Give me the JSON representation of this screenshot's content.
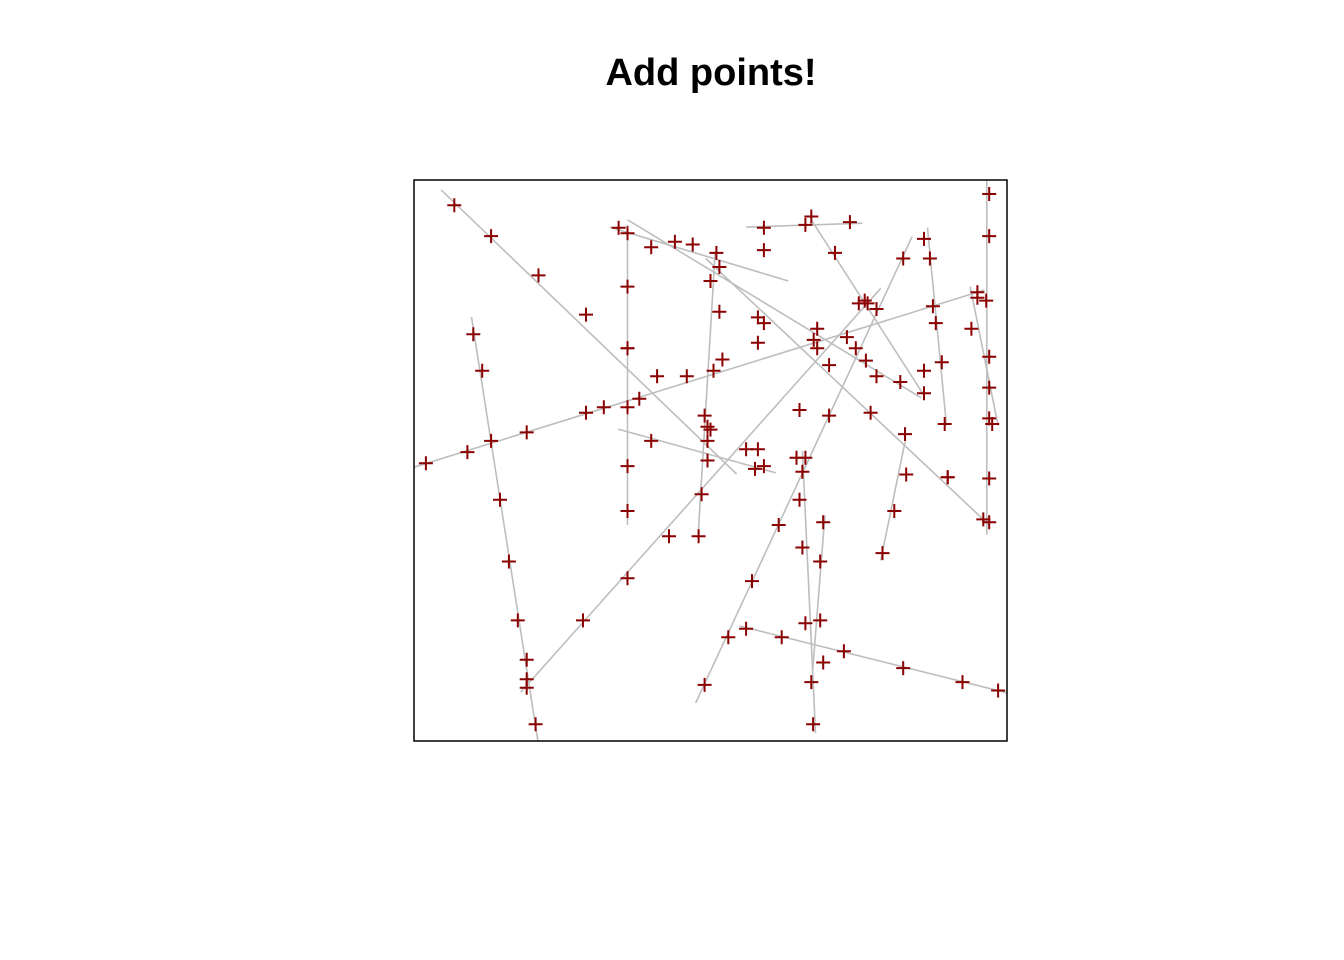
{
  "chart_data": {
    "type": "scatter",
    "title": "Add points!",
    "xlabel": "",
    "ylabel": "",
    "xlim": [
      0,
      1
    ],
    "ylim": [
      0,
      1
    ],
    "axes_shown": false,
    "box": true,
    "grid": false,
    "line_color": "#bebebe",
    "point_color": "#8b0000",
    "point_marker": "plus",
    "lines": [
      {
        "from": [
          0.046,
          0.982
        ],
        "to": [
          0.544,
          0.476
        ]
      },
      {
        "from": [
          0.0,
          0.488
        ],
        "to": [
          0.962,
          0.804
        ]
      },
      {
        "from": [
          0.097,
          0.756
        ],
        "to": [
          0.209,
          0.0
        ]
      },
      {
        "from": [
          0.36,
          0.92
        ],
        "to": [
          0.36,
          0.385
        ]
      },
      {
        "from": [
          0.33,
          0.916
        ],
        "to": [
          0.631,
          0.82
        ]
      },
      {
        "from": [
          0.56,
          0.916
        ],
        "to": [
          0.756,
          0.923
        ]
      },
      {
        "from": [
          0.67,
          0.929
        ],
        "to": [
          0.86,
          0.616
        ]
      },
      {
        "from": [
          0.36,
          0.929
        ],
        "to": [
          0.855,
          0.612
        ]
      },
      {
        "from": [
          0.492,
          0.86
        ],
        "to": [
          0.97,
          0.385
        ]
      },
      {
        "from": [
          0.18,
          0.087
        ],
        "to": [
          0.787,
          0.807
        ]
      },
      {
        "from": [
          0.475,
          0.068
        ],
        "to": [
          0.84,
          0.899
        ]
      },
      {
        "from": [
          0.508,
          0.872
        ],
        "to": [
          0.479,
          0.362
        ]
      },
      {
        "from": [
          0.344,
          0.556
        ],
        "to": [
          0.61,
          0.478
        ]
      },
      {
        "from": [
          0.655,
          0.517
        ],
        "to": [
          0.677,
          0.014
        ]
      },
      {
        "from": [
          0.693,
          0.402
        ],
        "to": [
          0.672,
          0.122
        ]
      },
      {
        "from": [
          0.549,
          0.205
        ],
        "to": [
          1.0,
          0.086
        ]
      },
      {
        "from": [
          0.866,
          0.915
        ],
        "to": [
          0.898,
          0.562
        ]
      },
      {
        "from": [
          0.966,
          1.0
        ],
        "to": [
          0.966,
          0.368
        ]
      },
      {
        "from": [
          0.938,
          0.81
        ],
        "to": [
          0.985,
          0.562
        ]
      },
      {
        "from": [
          0.828,
          0.533
        ],
        "to": [
          0.787,
          0.322
        ]
      }
    ],
    "points": [
      [
        0.068,
        0.955
      ],
      [
        0.13,
        0.9
      ],
      [
        0.21,
        0.83
      ],
      [
        0.29,
        0.76
      ],
      [
        0.36,
        0.7
      ],
      [
        0.41,
        0.65
      ],
      [
        0.49,
        0.58
      ],
      [
        0.56,
        0.52
      ],
      [
        0.02,
        0.495
      ],
      [
        0.09,
        0.515
      ],
      [
        0.19,
        0.55
      ],
      [
        0.29,
        0.585
      ],
      [
        0.38,
        0.61
      ],
      [
        0.46,
        0.65
      ],
      [
        0.52,
        0.68
      ],
      [
        0.58,
        0.71
      ],
      [
        0.68,
        0.735
      ],
      [
        0.75,
        0.78
      ],
      [
        0.95,
        0.8
      ],
      [
        0.1,
        0.725
      ],
      [
        0.115,
        0.66
      ],
      [
        0.13,
        0.535
      ],
      [
        0.145,
        0.43
      ],
      [
        0.16,
        0.32
      ],
      [
        0.175,
        0.215
      ],
      [
        0.19,
        0.11
      ],
      [
        0.205,
        0.03
      ],
      [
        0.36,
        0.905
      ],
      [
        0.36,
        0.81
      ],
      [
        0.36,
        0.7
      ],
      [
        0.36,
        0.595
      ],
      [
        0.36,
        0.49
      ],
      [
        0.36,
        0.41
      ],
      [
        0.345,
        0.915
      ],
      [
        0.4,
        0.88
      ],
      [
        0.44,
        0.89
      ],
      [
        0.47,
        0.885
      ],
      [
        0.51,
        0.87
      ],
      [
        0.59,
        0.875
      ],
      [
        0.59,
        0.915
      ],
      [
        0.66,
        0.92
      ],
      [
        0.67,
        0.935
      ],
      [
        0.735,
        0.925
      ],
      [
        0.71,
        0.87
      ],
      [
        0.765,
        0.78
      ],
      [
        0.82,
        0.64
      ],
      [
        0.86,
        0.62
      ],
      [
        0.5,
        0.82
      ],
      [
        0.58,
        0.755
      ],
      [
        0.59,
        0.745
      ],
      [
        0.674,
        0.715
      ],
      [
        0.762,
        0.678
      ],
      [
        0.828,
        0.547
      ],
      [
        0.9,
        0.47
      ],
      [
        0.96,
        0.395
      ],
      [
        0.19,
        0.145
      ],
      [
        0.19,
        0.095
      ],
      [
        0.285,
        0.215
      ],
      [
        0.36,
        0.29
      ],
      [
        0.43,
        0.365
      ],
      [
        0.575,
        0.485
      ],
      [
        0.65,
        0.59
      ],
      [
        0.7,
        0.67
      ],
      [
        0.68,
        0.7
      ],
      [
        0.49,
        0.1
      ],
      [
        0.53,
        0.185
      ],
      [
        0.57,
        0.285
      ],
      [
        0.615,
        0.385
      ],
      [
        0.66,
        0.505
      ],
      [
        0.7,
        0.58
      ],
      [
        0.76,
        0.785
      ],
      [
        0.78,
        0.77
      ],
      [
        0.825,
        0.86
      ],
      [
        0.515,
        0.845
      ],
      [
        0.515,
        0.765
      ],
      [
        0.505,
        0.66
      ],
      [
        0.495,
        0.56
      ],
      [
        0.495,
        0.5
      ],
      [
        0.485,
        0.44
      ],
      [
        0.48,
        0.365
      ],
      [
        0.5,
        0.555
      ],
      [
        0.32,
        0.595
      ],
      [
        0.4,
        0.535
      ],
      [
        0.495,
        0.535
      ],
      [
        0.58,
        0.52
      ],
      [
        0.59,
        0.49
      ],
      [
        0.645,
        0.505
      ],
      [
        0.655,
        0.48
      ],
      [
        0.65,
        0.43
      ],
      [
        0.655,
        0.345
      ],
      [
        0.66,
        0.21
      ],
      [
        0.67,
        0.105
      ],
      [
        0.673,
        0.03
      ],
      [
        0.69,
        0.39
      ],
      [
        0.685,
        0.32
      ],
      [
        0.685,
        0.215
      ],
      [
        0.69,
        0.14
      ],
      [
        0.56,
        0.2
      ],
      [
        0.62,
        0.185
      ],
      [
        0.725,
        0.16
      ],
      [
        0.825,
        0.13
      ],
      [
        0.925,
        0.105
      ],
      [
        0.985,
        0.09
      ],
      [
        0.86,
        0.895
      ],
      [
        0.87,
        0.86
      ],
      [
        0.875,
        0.775
      ],
      [
        0.88,
        0.745
      ],
      [
        0.89,
        0.675
      ],
      [
        0.895,
        0.565
      ],
      [
        0.97,
        0.975
      ],
      [
        0.97,
        0.9
      ],
      [
        0.965,
        0.785
      ],
      [
        0.97,
        0.685
      ],
      [
        0.97,
        0.63
      ],
      [
        0.97,
        0.575
      ],
      [
        0.97,
        0.468
      ],
      [
        0.97,
        0.39
      ],
      [
        0.95,
        0.79
      ],
      [
        0.94,
        0.735
      ],
      [
        0.975,
        0.565
      ],
      [
        0.9,
        0.47
      ],
      [
        0.86,
        0.66
      ],
      [
        0.83,
        0.475
      ],
      [
        0.81,
        0.41
      ],
      [
        0.79,
        0.335
      ],
      [
        0.77,
        0.585
      ],
      [
        0.78,
        0.65
      ],
      [
        0.745,
        0.7
      ],
      [
        0.73,
        0.72
      ]
    ]
  }
}
